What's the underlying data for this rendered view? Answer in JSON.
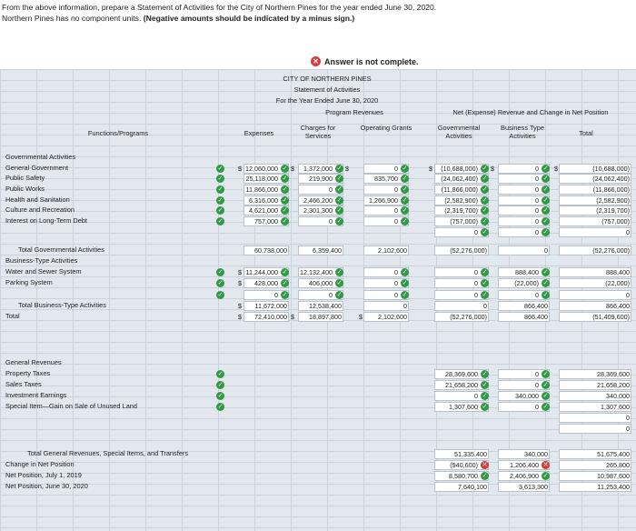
{
  "intro": {
    "line1": "From the above information, prepare a Statement of Activities for the City of Northern Pines for the year ended June 30, 2020.",
    "line2": "Northern Pines has no component units.",
    "line2_bold": "(Negative amounts should be indicated by a minus sign.)"
  },
  "banner": "Answer is not complete.",
  "statement": {
    "title1": "CITY OF NORTHERN PINES",
    "title2": "Statement of Activities",
    "title3": "For the Year Ended June 30, 2020",
    "program_revenues": "Program Revenues",
    "net_header": "Net (Expense) Revenue and Change in Net Position",
    "col_functions": "Functions/Programs",
    "col_expenses": "Expenses",
    "col_charges": "Charges for Services",
    "col_operating": "Operating Grants",
    "col_gov": "Governmental Activities",
    "col_bta": "Business Type Activities",
    "col_total": "Total"
  },
  "rows": [
    {
      "label": "Governmental Activities",
      "exp": "",
      "chg": "",
      "op": "",
      "gov": "",
      "bta": "",
      "tot": ""
    },
    {
      "label": "General Government",
      "exp": "12,060,000",
      "chg": "1,372,000",
      "op": "0",
      "gov": "(10,688,000)",
      "bta": "0",
      "tot": "(10,688,000)"
    },
    {
      "label": "Public Safety",
      "exp": "25,118,000",
      "chg": "219,900",
      "op": "835,700",
      "gov": "(24,062,400)",
      "bta": "0",
      "tot": "(24,062,400)"
    },
    {
      "label": "Public Works",
      "exp": "11,866,000",
      "chg": "0",
      "op": "0",
      "gov": "(11,866,000)",
      "bta": "0",
      "tot": "(11,866,000)"
    },
    {
      "label": "Health and Sanitation",
      "exp": "6,316,000",
      "chg": "2,466,200",
      "op": "1,266,900",
      "gov": "(2,582,900)",
      "bta": "0",
      "tot": "(2,582,900)"
    },
    {
      "label": "Culture and Recreation",
      "exp": "4,621,000",
      "chg": "2,301,300",
      "op": "0",
      "gov": "(2,319,700)",
      "bta": "0",
      "tot": "(2,319,700)"
    },
    {
      "label": "Interest on Long-Term Debt",
      "exp": "757,000",
      "chg": "0",
      "op": "0",
      "gov": "(757,000)",
      "bta": "0",
      "tot": "(757,000)"
    },
    {
      "label": "",
      "exp": "",
      "chg": "",
      "op": "",
      "gov": "0",
      "bta": "0",
      "tot": "0"
    },
    {
      "label": "Total Governmental Activities",
      "exp": "60,738,000",
      "chg": "6,359,400",
      "op": "2,102,600",
      "gov": "(52,276,000)",
      "bta": "0",
      "tot": "(52,276,000)"
    },
    {
      "label": "Business-Type Activities",
      "exp": "",
      "chg": "",
      "op": "",
      "gov": "",
      "bta": "",
      "tot": ""
    },
    {
      "label": "Water and Sewer System",
      "exp": "11,244,000",
      "chg": "12,132,400",
      "op": "0",
      "gov": "0",
      "bta": "888,400",
      "tot": "888,400"
    },
    {
      "label": "Parking System",
      "exp": "428,000",
      "chg": "406,000",
      "op": "0",
      "gov": "0",
      "bta": "(22,000)",
      "tot": "(22,000)"
    },
    {
      "label": "",
      "exp": "0",
      "chg": "0",
      "op": "0",
      "gov": "0",
      "bta": "0",
      "tot": "0"
    },
    {
      "label": "Total Business-Type Activities",
      "exp": "11,672,000",
      "chg": "12,538,400",
      "op": "0",
      "gov": "0",
      "bta": "866,400",
      "tot": "866,400"
    },
    {
      "label": "Total",
      "exp": "72,410,000",
      "chg": "18,897,800",
      "op": "2,102,600",
      "gov": "(52,276,000)",
      "bta": "866,400",
      "tot": "(51,409,600)"
    }
  ],
  "general": [
    {
      "label": "General Revenues",
      "gov": "",
      "bta": "",
      "tot": ""
    },
    {
      "label": "Property Taxes",
      "gov": "28,369,600",
      "bta": "0",
      "tot": "28,369,600"
    },
    {
      "label": "Sales Taxes",
      "gov": "21,658,200",
      "bta": "0",
      "tot": "21,658,200"
    },
    {
      "label": "Investment Earnings",
      "gov": "0",
      "bta": "340,000",
      "tot": "340,000"
    },
    {
      "label": "Special Item—Gain on Sale of Unused Land",
      "gov": "1,307,600",
      "bta": "0",
      "tot": "1,307,600"
    },
    {
      "label": "",
      "gov": "",
      "bta": "",
      "tot": "0"
    },
    {
      "label": "",
      "gov": "",
      "bta": "",
      "tot": "0"
    },
    {
      "label": "Total General Revenues, Special Items, and Transfers",
      "gov": "51,335,400",
      "bta": "340,000",
      "tot": "51,675,400"
    },
    {
      "label": "Change in Net Position",
      "gov": "(940,600)",
      "bta": "1,206,400",
      "tot": "265,800"
    },
    {
      "label": "Net Position, July 1, 2019",
      "gov": "8,580,700",
      "bta": "2,406,900",
      "tot": "10,987,600"
    },
    {
      "label": "Net Position, June 30, 2020",
      "gov": "7,640,100",
      "bta": "3,613,300",
      "tot": "11,253,400"
    }
  ],
  "symbols": {
    "dollar": "$",
    "check": "✓",
    "cross": "✕"
  }
}
